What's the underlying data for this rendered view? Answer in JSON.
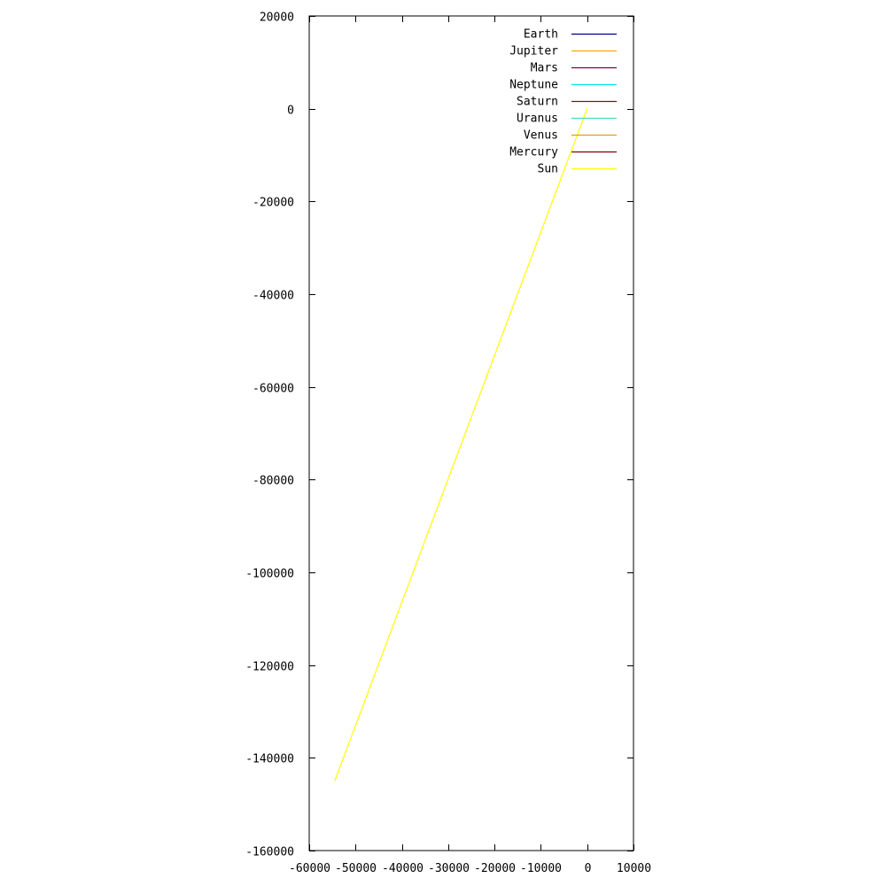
{
  "chart_data": {
    "type": "line",
    "title": "",
    "xlabel": "",
    "ylabel": "",
    "xlim": [
      -60000,
      10000
    ],
    "ylim": [
      -160000,
      20000
    ],
    "xticks": [
      -60000,
      -50000,
      -40000,
      -30000,
      -20000,
      -10000,
      0,
      10000
    ],
    "xtick_labels": [
      "-60000",
      "-50000",
      "-40000",
      "-30000",
      "-20000",
      "-10000",
      "0",
      "10000"
    ],
    "yticks": [
      20000,
      0,
      -20000,
      -40000,
      -60000,
      -80000,
      -100000,
      -120000,
      -140000,
      -160000
    ],
    "ytick_labels": [
      "20000",
      "0",
      "-20000",
      "-40000",
      "-60000",
      "-80000",
      "-100000",
      "-120000",
      "-140000",
      "-160000"
    ],
    "grid": false,
    "legend_position": "top-right",
    "series": [
      {
        "name": "Earth",
        "color": "#000080",
        "x": [
          0
        ],
        "y": [
          0
        ]
      },
      {
        "name": "Jupiter",
        "color": "#ffa500",
        "x": [
          0
        ],
        "y": [
          0
        ]
      },
      {
        "name": "Mars",
        "color": "#800040",
        "x": [
          0
        ],
        "y": [
          0
        ]
      },
      {
        "name": "Neptune",
        "color": "#00e5e5",
        "x": [
          0
        ],
        "y": [
          0
        ]
      },
      {
        "name": "Saturn",
        "color": "#a00020",
        "x": [
          0
        ],
        "y": [
          0
        ]
      },
      {
        "name": "Uranus",
        "color": "#40e0c0",
        "x": [
          0
        ],
        "y": [
          0
        ]
      },
      {
        "name": "Venus",
        "color": "#e0a000",
        "x": [
          0
        ],
        "y": [
          0
        ]
      },
      {
        "name": "Mercury",
        "color": "#800000",
        "x": [
          0
        ],
        "y": [
          0
        ]
      },
      {
        "name": "Sun",
        "color": "#ffff00",
        "x": [
          -54500,
          0
        ],
        "y": [
          -145000,
          0
        ]
      }
    ]
  }
}
